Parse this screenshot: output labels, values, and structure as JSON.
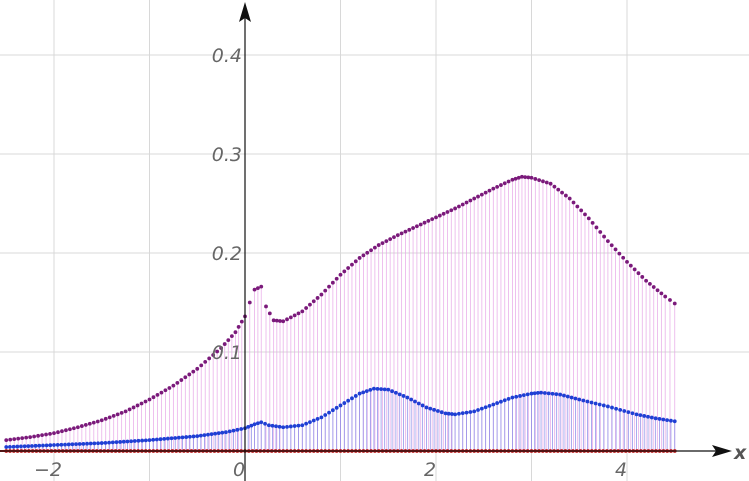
{
  "chart_data": {
    "type": "scatter",
    "title": "",
    "xlabel": "x",
    "ylabel": "",
    "xlim": [
      -2.5,
      4.7
    ],
    "ylim": [
      0,
      0.44
    ],
    "x_ticks": [
      -2,
      0,
      2,
      4
    ],
    "x_tick_labels": [
      "−2",
      "0",
      "2",
      "4"
    ],
    "y_ticks": [
      0.1,
      0.2,
      0.3,
      0.4
    ],
    "y_tick_labels": [
      "0.1",
      "0.2",
      "0.3",
      "0.4"
    ],
    "grid": true,
    "legend": "none",
    "series": [
      {
        "color": "#7b1a7b",
        "stem_color": "#e8a8e8",
        "style": "discrete points with vertical stems",
        "points": [
          [
            -2.5,
            0.011
          ],
          [
            -2.25,
            0.014
          ],
          [
            -2.0,
            0.018
          ],
          [
            -1.75,
            0.024
          ],
          [
            -1.5,
            0.031
          ],
          [
            -1.25,
            0.04
          ],
          [
            -1.0,
            0.052
          ],
          [
            -0.75,
            0.066
          ],
          [
            -0.5,
            0.083
          ],
          [
            -0.25,
            0.104
          ],
          [
            -0.1,
            0.12
          ],
          [
            0.0,
            0.136
          ],
          [
            0.05,
            0.15
          ],
          [
            0.1,
            0.163
          ],
          [
            0.17,
            0.166
          ],
          [
            0.22,
            0.146
          ],
          [
            0.3,
            0.132
          ],
          [
            0.4,
            0.131
          ],
          [
            0.6,
            0.141
          ],
          [
            0.8,
            0.158
          ],
          [
            1.0,
            0.178
          ],
          [
            1.2,
            0.195
          ],
          [
            1.4,
            0.208
          ],
          [
            1.6,
            0.218
          ],
          [
            1.8,
            0.227
          ],
          [
            2.0,
            0.236
          ],
          [
            2.2,
            0.245
          ],
          [
            2.4,
            0.255
          ],
          [
            2.6,
            0.265
          ],
          [
            2.8,
            0.274
          ],
          [
            2.9,
            0.277
          ],
          [
            3.0,
            0.276
          ],
          [
            3.2,
            0.27
          ],
          [
            3.4,
            0.255
          ],
          [
            3.6,
            0.235
          ],
          [
            3.8,
            0.212
          ],
          [
            4.0,
            0.191
          ],
          [
            4.2,
            0.172
          ],
          [
            4.4,
            0.156
          ],
          [
            4.5,
            0.149
          ]
        ]
      },
      {
        "color": "#1f3fd4",
        "stem_color": "#8a8ae8",
        "style": "discrete points with vertical stems",
        "points": [
          [
            -2.5,
            0.004
          ],
          [
            -2.0,
            0.006
          ],
          [
            -1.5,
            0.008
          ],
          [
            -1.0,
            0.011
          ],
          [
            -0.5,
            0.015
          ],
          [
            -0.2,
            0.019
          ],
          [
            0.0,
            0.023
          ],
          [
            0.1,
            0.027
          ],
          [
            0.17,
            0.029
          ],
          [
            0.25,
            0.026
          ],
          [
            0.4,
            0.024
          ],
          [
            0.6,
            0.026
          ],
          [
            0.8,
            0.034
          ],
          [
            1.0,
            0.046
          ],
          [
            1.2,
            0.058
          ],
          [
            1.35,
            0.063
          ],
          [
            1.5,
            0.062
          ],
          [
            1.7,
            0.054
          ],
          [
            1.9,
            0.044
          ],
          [
            2.1,
            0.038
          ],
          [
            2.2,
            0.037
          ],
          [
            2.4,
            0.04
          ],
          [
            2.6,
            0.047
          ],
          [
            2.8,
            0.054
          ],
          [
            3.0,
            0.058
          ],
          [
            3.1,
            0.059
          ],
          [
            3.3,
            0.057
          ],
          [
            3.5,
            0.052
          ],
          [
            3.8,
            0.045
          ],
          [
            4.1,
            0.037
          ],
          [
            4.3,
            0.033
          ],
          [
            4.5,
            0.03
          ]
        ]
      },
      {
        "color": "#c01818",
        "stem_color": "#c01818",
        "style": "discrete points along baseline",
        "points": [
          [
            -2.5,
            0.0
          ],
          [
            -1.0,
            0.0
          ],
          [
            0.0,
            0.0
          ],
          [
            1.0,
            0.0
          ],
          [
            2.0,
            0.0
          ],
          [
            3.0,
            0.0
          ],
          [
            4.5,
            0.0
          ]
        ]
      }
    ]
  }
}
